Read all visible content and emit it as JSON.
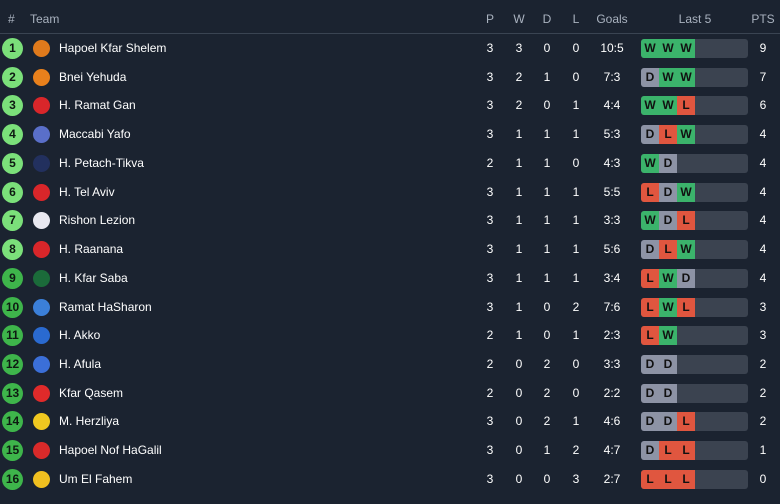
{
  "header": {
    "rank": "#",
    "team": "Team",
    "p": "P",
    "w": "W",
    "d": "D",
    "l": "L",
    "goals": "Goals",
    "last5": "Last 5",
    "pts": "PTS"
  },
  "colors": {
    "W": "#3bb36b",
    "D": "#8d93a5",
    "L": "#e0563f",
    "top_zone": "#7be07a",
    "lower_zone": "#3eb54b"
  },
  "rows": [
    {
      "rank": "1",
      "team": "Hapoel Kfar Shelem",
      "p": "3",
      "w": "3",
      "d": "0",
      "l": "0",
      "goals": "10:5",
      "form": [
        "W",
        "W",
        "W"
      ],
      "pts": "9",
      "logo": "#e07a1c"
    },
    {
      "rank": "2",
      "team": "Bnei Yehuda",
      "p": "3",
      "w": "2",
      "d": "1",
      "l": "0",
      "goals": "7:3",
      "form": [
        "D",
        "W",
        "W"
      ],
      "pts": "7",
      "logo": "#e8801c"
    },
    {
      "rank": "3",
      "team": "H. Ramat Gan",
      "p": "3",
      "w": "2",
      "d": "0",
      "l": "1",
      "goals": "4:4",
      "form": [
        "W",
        "W",
        "L"
      ],
      "pts": "6",
      "logo": "#d9262a"
    },
    {
      "rank": "4",
      "team": "Maccabi Yafo",
      "p": "3",
      "w": "1",
      "d": "1",
      "l": "1",
      "goals": "5:3",
      "form": [
        "D",
        "L",
        "W"
      ],
      "pts": "4",
      "logo": "#5a6fc9"
    },
    {
      "rank": "5",
      "team": "H. Petach-Tikva",
      "p": "2",
      "w": "1",
      "d": "1",
      "l": "0",
      "goals": "4:3",
      "form": [
        "W",
        "D"
      ],
      "pts": "4",
      "logo": "#22305e"
    },
    {
      "rank": "6",
      "team": "H. Tel Aviv",
      "p": "3",
      "w": "1",
      "d": "1",
      "l": "1",
      "goals": "5:5",
      "form": [
        "L",
        "D",
        "W"
      ],
      "pts": "4",
      "logo": "#d9262a"
    },
    {
      "rank": "7",
      "team": "Rishon Lezion",
      "p": "3",
      "w": "1",
      "d": "1",
      "l": "1",
      "goals": "3:3",
      "form": [
        "W",
        "D",
        "L"
      ],
      "pts": "4",
      "logo": "#e8e8f0"
    },
    {
      "rank": "8",
      "team": "H. Raanana",
      "p": "3",
      "w": "1",
      "d": "1",
      "l": "1",
      "goals": "5:6",
      "form": [
        "D",
        "L",
        "W"
      ],
      "pts": "4",
      "logo": "#d9262a"
    },
    {
      "rank": "9",
      "team": "H. Kfar Saba",
      "p": "3",
      "w": "1",
      "d": "1",
      "l": "1",
      "goals": "3:4",
      "form": [
        "L",
        "W",
        "D"
      ],
      "pts": "4",
      "logo": "#1b6b3a"
    },
    {
      "rank": "10",
      "team": "Ramat HaSharon",
      "p": "3",
      "w": "1",
      "d": "0",
      "l": "2",
      "goals": "7:6",
      "form": [
        "L",
        "W",
        "L"
      ],
      "pts": "3",
      "logo": "#3b7fd8"
    },
    {
      "rank": "11",
      "team": "H. Akko",
      "p": "2",
      "w": "1",
      "d": "0",
      "l": "1",
      "goals": "2:3",
      "form": [
        "L",
        "W"
      ],
      "pts": "3",
      "logo": "#2a6ad0"
    },
    {
      "rank": "12",
      "team": "H. Afula",
      "p": "2",
      "w": "0",
      "d": "2",
      "l": "0",
      "goals": "3:3",
      "form": [
        "D",
        "D"
      ],
      "pts": "2",
      "logo": "#3b6fd8"
    },
    {
      "rank": "13",
      "team": "Kfar Qasem",
      "p": "2",
      "w": "0",
      "d": "2",
      "l": "0",
      "goals": "2:2",
      "form": [
        "D",
        "D"
      ],
      "pts": "2",
      "logo": "#e02a2a"
    },
    {
      "rank": "14",
      "team": "M. Herzliya",
      "p": "3",
      "w": "0",
      "d": "2",
      "l": "1",
      "goals": "4:6",
      "form": [
        "D",
        "D",
        "L"
      ],
      "pts": "2",
      "logo": "#f0c820"
    },
    {
      "rank": "15",
      "team": "Hapoel Nof HaGalil",
      "p": "3",
      "w": "0",
      "d": "1",
      "l": "2",
      "goals": "4:7",
      "form": [
        "D",
        "L",
        "L"
      ],
      "pts": "1",
      "logo": "#d92a2a"
    },
    {
      "rank": "16",
      "team": "Um El Fahem",
      "p": "3",
      "w": "0",
      "d": "0",
      "l": "3",
      "goals": "2:7",
      "form": [
        "L",
        "L",
        "L"
      ],
      "pts": "0",
      "logo": "#f0c020"
    }
  ]
}
